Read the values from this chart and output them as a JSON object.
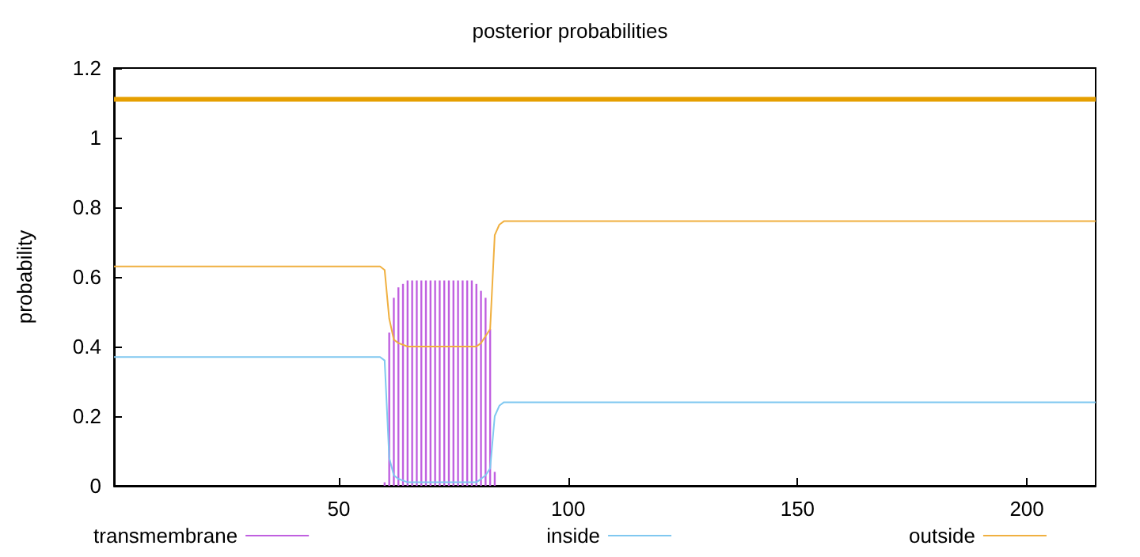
{
  "chart_data": {
    "type": "line",
    "title": "posterior probabilities",
    "ylabel": "probability",
    "xlim": [
      1,
      215
    ],
    "xticks": [
      50,
      100,
      150,
      200
    ],
    "ylim": [
      0,
      1.2
    ],
    "yticks": [
      0,
      0.2,
      0.4,
      0.6,
      0.8,
      1,
      1.2
    ],
    "grid": false,
    "legend": "bottom",
    "marker": "none",
    "line_style": "solid",
    "series": [
      {
        "name": "transmembrane",
        "type": "bar",
        "color": "#c060e0",
        "x": [
          60,
          61,
          62,
          63,
          64,
          65,
          66,
          67,
          68,
          69,
          70,
          71,
          72,
          73,
          74,
          75,
          76,
          77,
          78,
          79,
          80,
          81,
          82,
          83,
          84
        ],
        "values": [
          0.01,
          0.44,
          0.54,
          0.57,
          0.58,
          0.59,
          0.59,
          0.59,
          0.59,
          0.59,
          0.59,
          0.59,
          0.59,
          0.59,
          0.59,
          0.59,
          0.59,
          0.59,
          0.59,
          0.59,
          0.58,
          0.56,
          0.54,
          0.45,
          0.04
        ]
      },
      {
        "name": "inside",
        "color": "#80c8f0",
        "x": [
          1,
          59,
          60,
          61,
          62,
          63,
          65,
          80,
          81,
          82,
          83,
          84,
          85,
          86,
          88,
          215
        ],
        "values": [
          0.37,
          0.37,
          0.36,
          0.08,
          0.03,
          0.02,
          0.01,
          0.01,
          0.02,
          0.03,
          0.05,
          0.2,
          0.23,
          0.24,
          0.24,
          0.24
        ]
      },
      {
        "name": "outside",
        "color": "#f0b040",
        "x": [
          1,
          59,
          60,
          61,
          62,
          63,
          65,
          80,
          81,
          82,
          83,
          84,
          85,
          86,
          88,
          215
        ],
        "values": [
          0.63,
          0.63,
          0.62,
          0.48,
          0.42,
          0.41,
          0.4,
          0.4,
          0.41,
          0.43,
          0.45,
          0.72,
          0.75,
          0.76,
          0.76,
          0.76
        ]
      },
      {
        "color": "#e69f00",
        "x": [
          1,
          215
        ],
        "values": [
          1.11,
          1.11
        ]
      }
    ]
  }
}
